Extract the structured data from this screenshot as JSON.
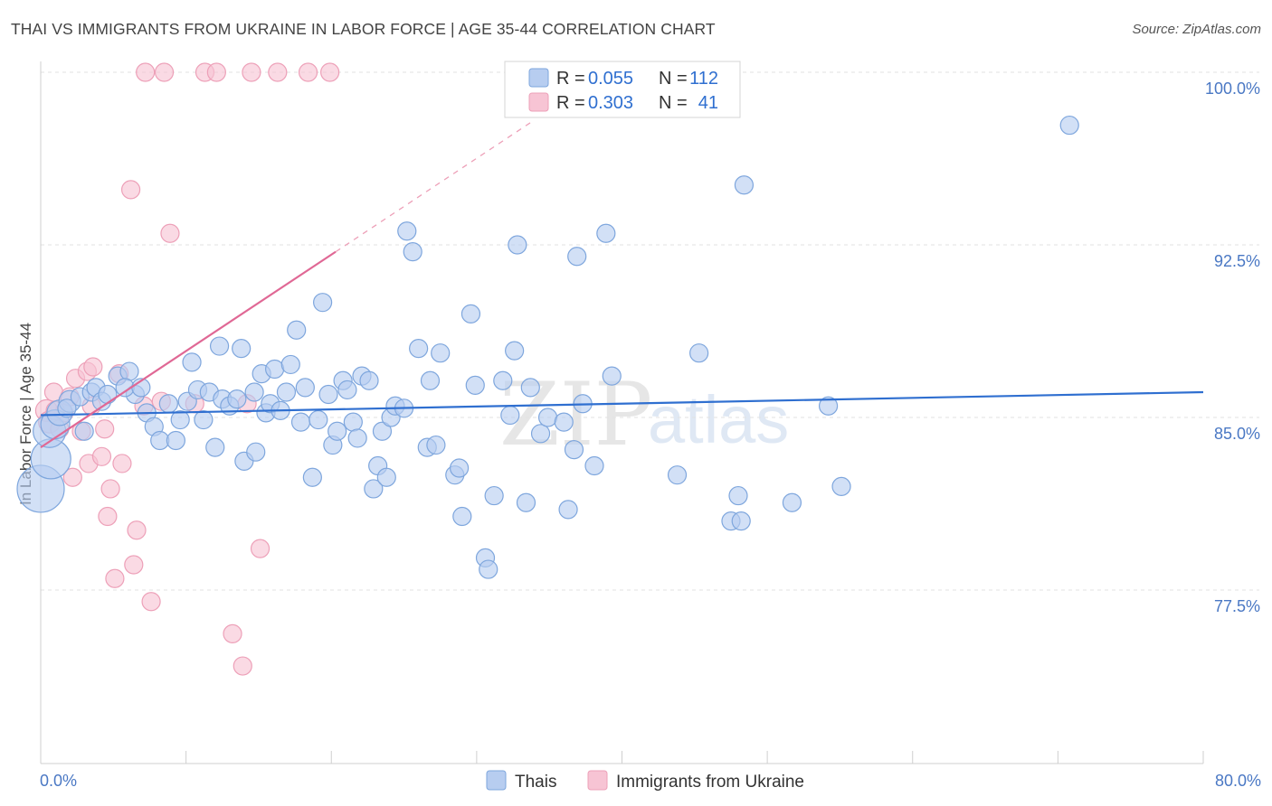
{
  "title": "THAI VS IMMIGRANTS FROM UKRAINE IN LABOR FORCE | AGE 35-44 CORRELATION CHART",
  "source": "Source: ZipAtlas.com",
  "colors": {
    "thais_fill": "#b7cdf0",
    "thais_stroke": "#7ea6dd",
    "thais_line": "#2f6fd0",
    "ukraine_fill": "#f7c4d4",
    "ukraine_stroke": "#eda0b8",
    "ukraine_line": "#e06895",
    "grid": "#e2e2e2",
    "tick_label": "#4a78c4"
  },
  "chart_data": {
    "type": "scatter",
    "title": "THAI VS IMMIGRANTS FROM UKRAINE IN LABOR FORCE | AGE 35-44 CORRELATION CHART",
    "xlabel": "",
    "ylabel": "In Labor Force | Age 35-44",
    "xlim": [
      0,
      80
    ],
    "ylim": [
      70.5,
      100.8
    ],
    "x_tick_labels": [
      "0.0%",
      "80.0%"
    ],
    "y_ticks": [
      77.5,
      85.0,
      92.5,
      100.0
    ],
    "y_tick_labels": [
      "77.5%",
      "85.0%",
      "92.5%",
      "100.0%"
    ],
    "legend": [
      {
        "name": "Thais",
        "R": "0.055",
        "N": "112"
      },
      {
        "name": "Immigrants from Ukraine",
        "R": "0.303",
        "N": "41"
      }
    ],
    "legend_r_label": "R =",
    "legend_n_label": "N =",
    "watermark": [
      "ZIP",
      "atlas"
    ],
    "series": [
      {
        "name": "Thais",
        "trendline": {
          "x": [
            0,
            80
          ],
          "y": [
            85.1,
            86.1
          ]
        },
        "points": [
          [
            0.0,
            81.9,
            26
          ],
          [
            0.7,
            83.2,
            22
          ],
          [
            0.6,
            84.4,
            18
          ],
          [
            1.0,
            84.7,
            16
          ],
          [
            1.3,
            85.2,
            14
          ],
          [
            2.0,
            85.7,
            12
          ],
          [
            1.8,
            85.4,
            10
          ],
          [
            3.0,
            84.4,
            10
          ],
          [
            2.7,
            85.9,
            10
          ],
          [
            3.5,
            86.1,
            10
          ],
          [
            3.8,
            86.3,
            10
          ],
          [
            4.2,
            85.7,
            10
          ],
          [
            4.6,
            86.0,
            10
          ],
          [
            5.3,
            86.8,
            10
          ],
          [
            6.1,
            87.0,
            10
          ],
          [
            6.5,
            86.0,
            10
          ],
          [
            5.8,
            86.3,
            10
          ],
          [
            6.9,
            86.3,
            10
          ],
          [
            7.3,
            85.2,
            10
          ],
          [
            7.8,
            84.6,
            10
          ],
          [
            8.2,
            84.0,
            10
          ],
          [
            8.8,
            85.6,
            10
          ],
          [
            9.3,
            84.0,
            10
          ],
          [
            9.6,
            84.9,
            10
          ],
          [
            10.1,
            85.7,
            10
          ],
          [
            10.4,
            87.4,
            10
          ],
          [
            10.8,
            86.2,
            10
          ],
          [
            11.2,
            84.9,
            10
          ],
          [
            11.6,
            86.1,
            10
          ],
          [
            12.0,
            83.7,
            10
          ],
          [
            12.3,
            88.1,
            10
          ],
          [
            12.5,
            85.8,
            10
          ],
          [
            13.0,
            85.5,
            10
          ],
          [
            13.5,
            85.8,
            10
          ],
          [
            13.8,
            88.0,
            10
          ],
          [
            14.0,
            83.1,
            10
          ],
          [
            14.7,
            86.1,
            10
          ],
          [
            14.8,
            83.5,
            10
          ],
          [
            15.2,
            86.9,
            10
          ],
          [
            15.5,
            85.2,
            10
          ],
          [
            15.8,
            85.6,
            10
          ],
          [
            16.1,
            87.1,
            10
          ],
          [
            16.5,
            85.3,
            10
          ],
          [
            16.9,
            86.1,
            10
          ],
          [
            17.2,
            87.3,
            10
          ],
          [
            17.6,
            88.8,
            10
          ],
          [
            17.9,
            84.8,
            10
          ],
          [
            18.2,
            86.3,
            10
          ],
          [
            18.7,
            82.4,
            10
          ],
          [
            19.1,
            84.9,
            10
          ],
          [
            19.4,
            90.0,
            10
          ],
          [
            19.8,
            86.0,
            10
          ],
          [
            20.1,
            83.8,
            10
          ],
          [
            20.4,
            84.4,
            10
          ],
          [
            20.8,
            86.6,
            10
          ],
          [
            21.1,
            86.2,
            10
          ],
          [
            21.5,
            84.8,
            10
          ],
          [
            21.8,
            84.1,
            10
          ],
          [
            22.1,
            86.8,
            10
          ],
          [
            22.6,
            86.6,
            10
          ],
          [
            22.9,
            81.9,
            10
          ],
          [
            23.2,
            82.9,
            10
          ],
          [
            23.5,
            84.4,
            10
          ],
          [
            23.8,
            82.4,
            10
          ],
          [
            24.1,
            85.0,
            10
          ],
          [
            24.4,
            85.5,
            10
          ],
          [
            25.0,
            85.4,
            10
          ],
          [
            25.2,
            93.1,
            10
          ],
          [
            25.6,
            92.2,
            10
          ],
          [
            26.0,
            88.0,
            10
          ],
          [
            26.6,
            83.7,
            10
          ],
          [
            26.8,
            86.6,
            10
          ],
          [
            27.2,
            83.8,
            10
          ],
          [
            27.5,
            87.8,
            10
          ],
          [
            28.5,
            82.5,
            10
          ],
          [
            28.8,
            82.8,
            10
          ],
          [
            29.0,
            80.7,
            10
          ],
          [
            29.6,
            89.5,
            10
          ],
          [
            29.9,
            86.4,
            10
          ],
          [
            30.6,
            78.9,
            10
          ],
          [
            30.8,
            78.4,
            10
          ],
          [
            31.2,
            81.6,
            10
          ],
          [
            31.8,
            86.6,
            10
          ],
          [
            32.3,
            85.1,
            10
          ],
          [
            32.6,
            87.9,
            10
          ],
          [
            32.8,
            92.5,
            10
          ],
          [
            33.4,
            81.3,
            10
          ],
          [
            33.7,
            86.3,
            10
          ],
          [
            34.4,
            84.3,
            10
          ],
          [
            34.9,
            85.0,
            10
          ],
          [
            36.0,
            84.8,
            10
          ],
          [
            36.3,
            81.0,
            10
          ],
          [
            36.7,
            83.6,
            10
          ],
          [
            36.9,
            92.0,
            10
          ],
          [
            37.3,
            85.6,
            10
          ],
          [
            38.1,
            82.9,
            10
          ],
          [
            38.9,
            93.0,
            10
          ],
          [
            39.3,
            86.8,
            10
          ],
          [
            43.8,
            82.5,
            10
          ],
          [
            45.3,
            87.8,
            10
          ],
          [
            47.5,
            80.5,
            10
          ],
          [
            48.0,
            81.6,
            10
          ],
          [
            48.2,
            80.5,
            10
          ],
          [
            48.4,
            95.1,
            10
          ],
          [
            51.7,
            81.3,
            10
          ],
          [
            54.2,
            85.5,
            10
          ],
          [
            55.1,
            82.0,
            10
          ],
          [
            70.8,
            97.7,
            10
          ]
        ]
      },
      {
        "name": "Immigrants from Ukraine",
        "trendline": {
          "x": [
            0,
            20.3
          ],
          "y": [
            83.7,
            92.2
          ],
          "x_dashed_end": 33.7
        },
        "points": [
          [
            0.4,
            85.3,
            12
          ],
          [
            0.6,
            84.8,
            12
          ],
          [
            0.9,
            86.1,
            10
          ],
          [
            1.3,
            84.5,
            10
          ],
          [
            1.6,
            85.2,
            10
          ],
          [
            2.0,
            85.9,
            10
          ],
          [
            2.2,
            82.4,
            10
          ],
          [
            2.4,
            86.7,
            10
          ],
          [
            2.8,
            84.4,
            10
          ],
          [
            3.2,
            87.0,
            10
          ],
          [
            3.5,
            85.5,
            10
          ],
          [
            3.3,
            83.0,
            10
          ],
          [
            3.6,
            87.2,
            10
          ],
          [
            4.2,
            83.3,
            10
          ],
          [
            4.4,
            84.5,
            10
          ],
          [
            4.6,
            80.7,
            10
          ],
          [
            4.8,
            81.9,
            10
          ],
          [
            5.1,
            78.0,
            10
          ],
          [
            5.4,
            86.9,
            10
          ],
          [
            5.6,
            83.0,
            10
          ],
          [
            6.2,
            94.9,
            10
          ],
          [
            6.4,
            78.6,
            10
          ],
          [
            6.6,
            80.1,
            10
          ],
          [
            7.1,
            85.5,
            10
          ],
          [
            7.6,
            77.0,
            10
          ],
          [
            8.3,
            85.7,
            10
          ],
          [
            8.9,
            93.0,
            10
          ],
          [
            10.6,
            85.6,
            10
          ],
          [
            11.3,
            100.0,
            10
          ],
          [
            12.1,
            100.0,
            10
          ],
          [
            13.2,
            75.6,
            10
          ],
          [
            13.9,
            74.2,
            10
          ],
          [
            14.2,
            85.6,
            10
          ],
          [
            14.5,
            100.0,
            10
          ],
          [
            15.1,
            79.3,
            10
          ],
          [
            16.3,
            100.0,
            10
          ],
          [
            18.4,
            100.0,
            10
          ],
          [
            19.9,
            100.0,
            10
          ],
          [
            8.5,
            100.0,
            10
          ],
          [
            7.2,
            100.0,
            10
          ],
          [
            1.0,
            85.3,
            10
          ]
        ]
      }
    ]
  }
}
